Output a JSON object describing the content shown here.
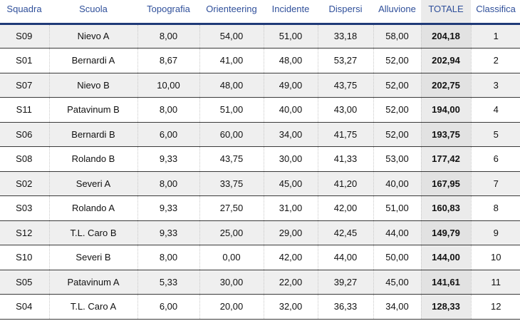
{
  "columns": [
    "Squadra",
    "Scuola",
    "Topografia",
    "Orienteering",
    "Incidente",
    "Dispersi",
    "Alluvione",
    "TOTALE",
    "Classifica"
  ],
  "rows": [
    [
      "S09",
      "Nievo A",
      "8,00",
      "54,00",
      "51,00",
      "33,18",
      "58,00",
      "204,18",
      "1"
    ],
    [
      "S01",
      "Bernardi A",
      "8,67",
      "41,00",
      "48,00",
      "53,27",
      "52,00",
      "202,94",
      "2"
    ],
    [
      "S07",
      "Nievo B",
      "10,00",
      "48,00",
      "49,00",
      "43,75",
      "52,00",
      "202,75",
      "3"
    ],
    [
      "S11",
      "Patavinum B",
      "8,00",
      "51,00",
      "40,00",
      "43,00",
      "52,00",
      "194,00",
      "4"
    ],
    [
      "S06",
      "Bernardi B",
      "6,00",
      "60,00",
      "34,00",
      "41,75",
      "52,00",
      "193,75",
      "5"
    ],
    [
      "S08",
      "Rolando B",
      "9,33",
      "43,75",
      "30,00",
      "41,33",
      "53,00",
      "177,42",
      "6"
    ],
    [
      "S02",
      "Severi A",
      "8,00",
      "33,75",
      "45,00",
      "41,20",
      "40,00",
      "167,95",
      "7"
    ],
    [
      "S03",
      "Rolando A",
      "9,33",
      "27,50",
      "31,00",
      "42,00",
      "51,00",
      "160,83",
      "8"
    ],
    [
      "S12",
      "T.L. Caro B",
      "9,33",
      "25,00",
      "29,00",
      "42,45",
      "44,00",
      "149,79",
      "9"
    ],
    [
      "S10",
      "Severi B",
      "8,00",
      "0,00",
      "42,00",
      "44,00",
      "50,00",
      "144,00",
      "10"
    ],
    [
      "S05",
      "Patavinum A",
      "5,33",
      "30,00",
      "22,00",
      "39,27",
      "45,00",
      "141,61",
      "11"
    ],
    [
      "S04",
      "T.L. Caro A",
      "6,00",
      "20,00",
      "32,00",
      "36,33",
      "34,00",
      "128,33",
      "12"
    ]
  ],
  "colors": {
    "header_text": "#2f4f9a",
    "header_rule": "#1f3a78",
    "row_shade": "#efefef",
    "total_shade": "#e2e2e2"
  }
}
